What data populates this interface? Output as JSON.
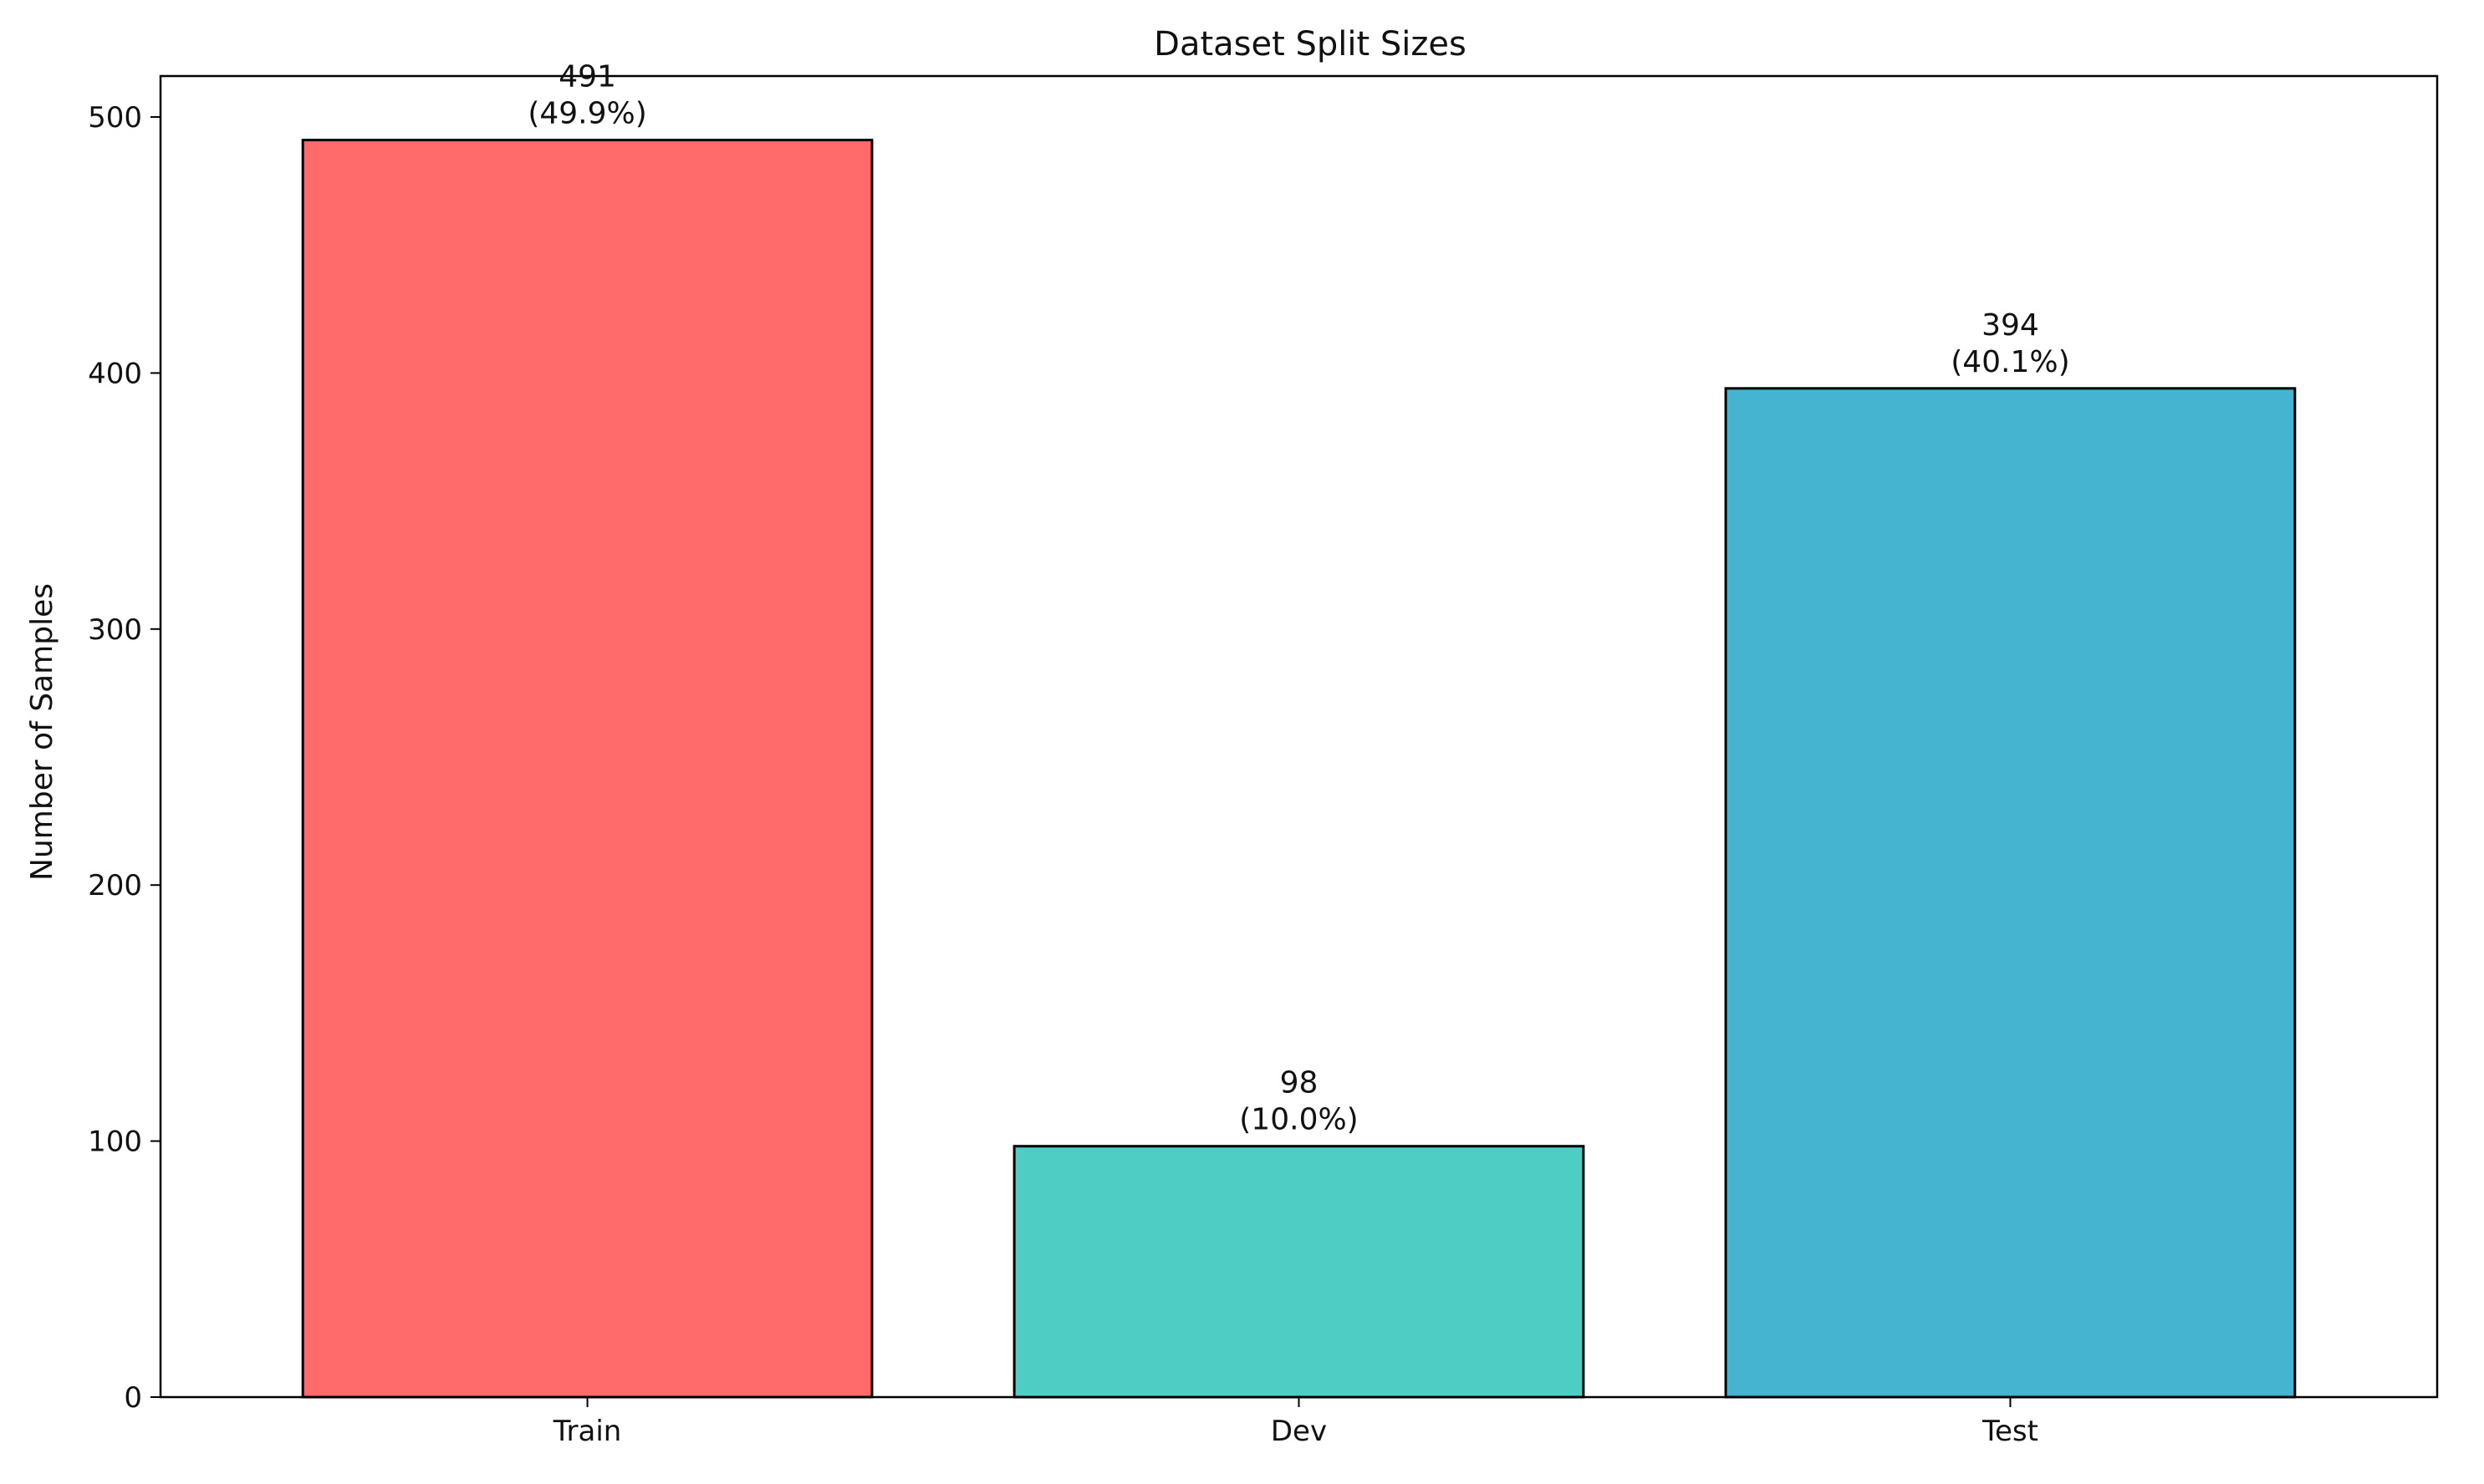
{
  "chart_data": {
    "type": "bar",
    "title": "Dataset Split Sizes",
    "xlabel": "",
    "ylabel": "Number of Samples",
    "categories": [
      "Train",
      "Dev",
      "Test"
    ],
    "values": [
      491,
      98,
      394
    ],
    "value_labels": [
      "491",
      "98",
      "394"
    ],
    "percent_labels": [
      "(49.9%)",
      "(10.0%)",
      "(40.1%)"
    ],
    "colors": [
      "#ff6b6b",
      "#4ecdc4",
      "#45b4d1"
    ],
    "edge_color": "#000000",
    "ylim": [
      0,
      516
    ],
    "yticks": [
      0,
      100,
      200,
      300,
      400,
      500
    ],
    "grid": false,
    "legend": "none"
  }
}
